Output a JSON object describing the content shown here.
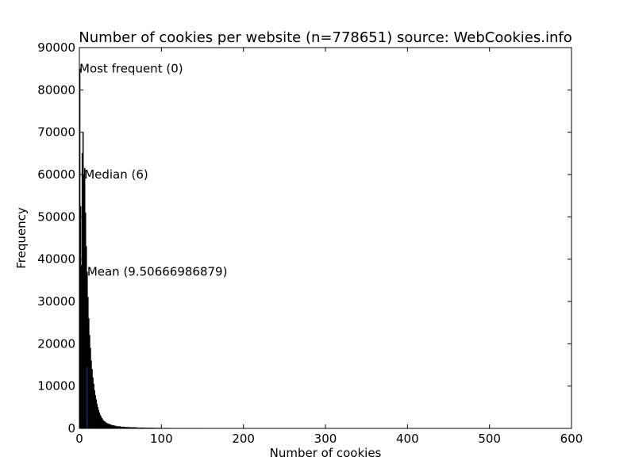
{
  "chart_data": {
    "type": "bar",
    "title": "Number of cookies per website (n=778651) source: WebCookies.info",
    "xlabel": "Number of cookies",
    "ylabel": "Frequency",
    "xlim": [
      0,
      600
    ],
    "ylim": [
      0,
      90000
    ],
    "xticks": [
      0,
      100,
      200,
      300,
      400,
      500,
      600
    ],
    "yticks": [
      0,
      10000,
      20000,
      30000,
      40000,
      50000,
      60000,
      70000,
      80000,
      90000
    ],
    "grid": false,
    "bar_color": "#000000",
    "mean_line_color": "#1f2f8f",
    "bins": {
      "x": [
        0,
        1,
        2,
        3,
        4,
        5,
        6,
        7,
        8,
        9,
        10,
        11,
        12,
        13,
        14,
        15,
        16,
        17,
        18,
        19,
        20,
        21,
        22,
        23,
        24,
        25,
        26,
        27,
        28,
        29,
        30,
        32,
        34,
        36,
        38,
        40,
        43,
        46,
        50,
        55,
        60,
        70,
        80,
        90,
        100,
        110,
        150,
        200,
        300,
        400,
        500,
        580
      ],
      "values": [
        85000,
        52500,
        38500,
        65000,
        70000,
        60000,
        61500,
        51000,
        43000,
        37000,
        31000,
        26000,
        22000,
        19000,
        16000,
        14000,
        12000,
        10500,
        9000,
        7800,
        6800,
        5800,
        5000,
        4300,
        3700,
        3200,
        2800,
        2400,
        2100,
        1800,
        1600,
        1300,
        1100,
        950,
        800,
        680,
        550,
        450,
        360,
        280,
        220,
        160,
        120,
        90,
        70,
        50,
        30,
        15,
        8,
        4,
        2,
        1
      ]
    },
    "annotations": [
      {
        "label": "Most frequent (0)",
        "x": 0,
        "y": 85000
      },
      {
        "label": "Median (6)",
        "x": 6,
        "y": 60000
      },
      {
        "label": "Mean (9.50666986879)",
        "x": 9.50666986879,
        "y": 37000
      }
    ]
  }
}
